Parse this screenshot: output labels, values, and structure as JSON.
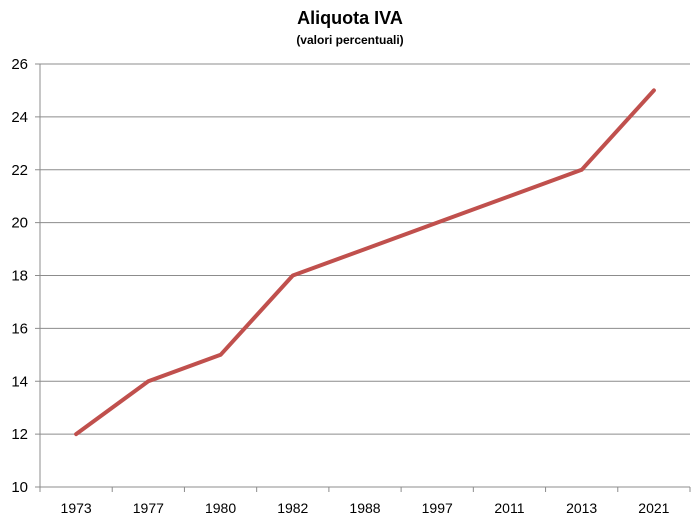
{
  "chart_data": {
    "type": "line",
    "title": "Aliquota IVA",
    "subtitle": "(valori percentuali)",
    "xlabel": "",
    "ylabel": "",
    "categories": [
      "1973",
      "1977",
      "1980",
      "1982",
      "1988",
      "1997",
      "2011",
      "2013",
      "2021"
    ],
    "series": [
      {
        "name": "Aliquota IVA",
        "values": [
          12,
          14,
          15,
          18,
          19,
          20,
          21,
          22,
          25
        ],
        "color": "#c0504d"
      }
    ],
    "ylim": [
      10,
      26
    ],
    "yticks": [
      10,
      12,
      14,
      16,
      18,
      20,
      22,
      24,
      26
    ],
    "grid": true,
    "legend": "none"
  }
}
